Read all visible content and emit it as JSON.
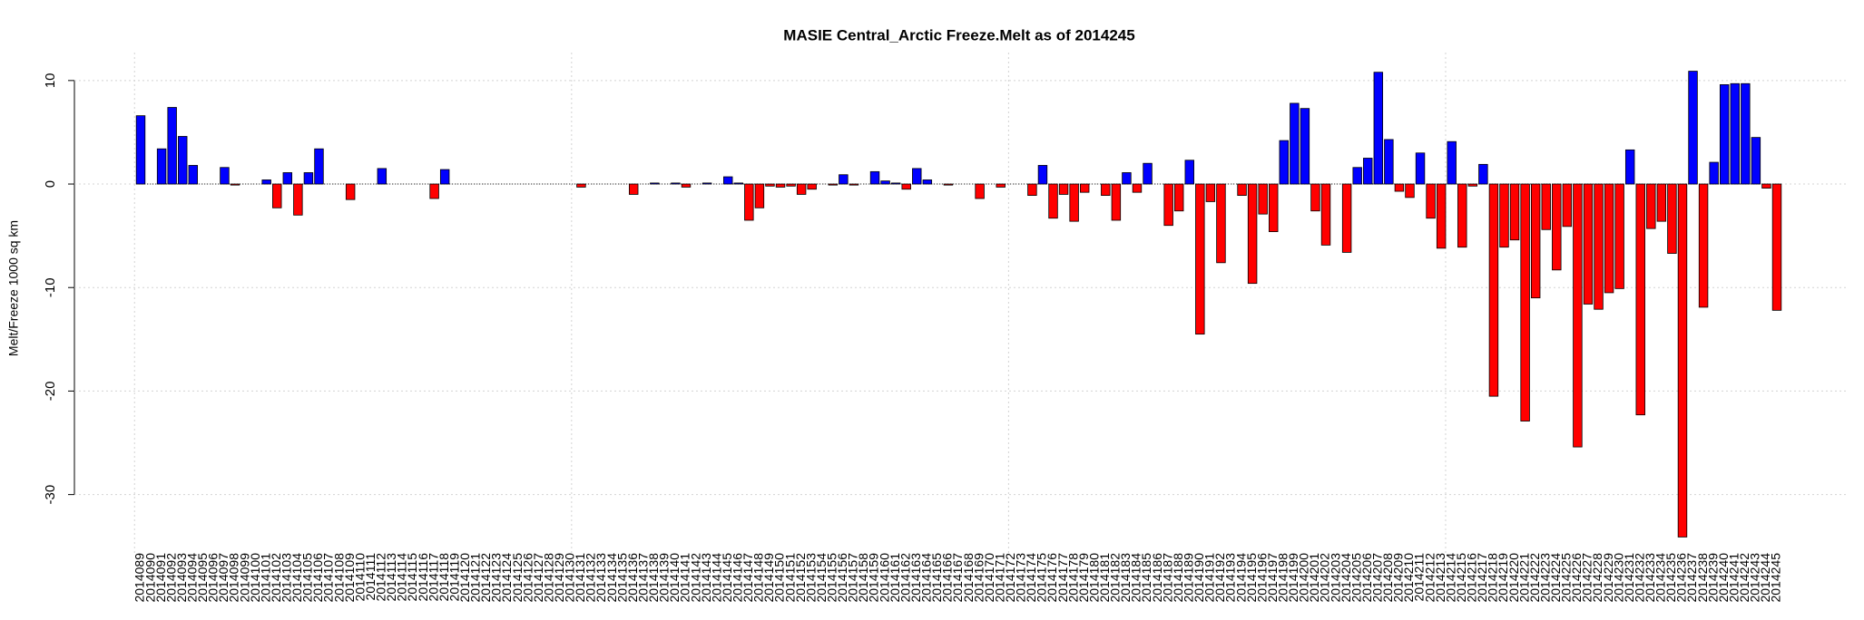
{
  "chart_data": {
    "type": "bar",
    "title": "MASIE Central_Arctic Freeze.Melt as of 2014245",
    "y_label": "Melt/Freeze 1000 sq km",
    "positive_color": "#0000ff",
    "negative_color": "#ff0000",
    "ylim": [
      -35.9,
      12.7
    ],
    "yticks": [
      -30,
      -20,
      -10,
      0,
      10
    ],
    "grid": true,
    "categories": [
      "2014089",
      "2014090",
      "2014091",
      "2014092",
      "2014093",
      "2014094",
      "2014095",
      "2014096",
      "2014097",
      "2014098",
      "2014099",
      "2014100",
      "2014101",
      "2014102",
      "2014103",
      "2014104",
      "2014105",
      "2014106",
      "2014107",
      "2014108",
      "2014109",
      "2014110",
      "2014111",
      "2014112",
      "2014113",
      "2014114",
      "2014115",
      "2014116",
      "2014117",
      "2014118",
      "2014119",
      "2014120",
      "2014121",
      "2014122",
      "2014123",
      "2014124",
      "2014125",
      "2014126",
      "2014127",
      "2014128",
      "2014129",
      "2014130",
      "2014131",
      "2014132",
      "2014133",
      "2014134",
      "2014135",
      "2014136",
      "2014137",
      "2014138",
      "2014139",
      "2014140",
      "2014141",
      "2014142",
      "2014143",
      "2014144",
      "2014145",
      "2014146",
      "2014147",
      "2014148",
      "2014149",
      "2014150",
      "2014151",
      "2014152",
      "2014153",
      "2014154",
      "2014155",
      "2014156",
      "2014157",
      "2014158",
      "2014159",
      "2014160",
      "2014161",
      "2014162",
      "2014163",
      "2014164",
      "2014165",
      "2014166",
      "2014167",
      "2014168",
      "2014169",
      "2014170",
      "2014171",
      "2014172",
      "2014173",
      "2014174",
      "2014175",
      "2014176",
      "2014177",
      "2014178",
      "2014179",
      "2014180",
      "2014181",
      "2014182",
      "2014183",
      "2014184",
      "2014185",
      "2014186",
      "2014187",
      "2014188",
      "2014189",
      "2014190",
      "2014191",
      "2014192",
      "2014193",
      "2014194",
      "2014195",
      "2014196",
      "2014197",
      "2014198",
      "2014199",
      "2014200",
      "2014201",
      "2014202",
      "2014203",
      "2014204",
      "2014205",
      "2014206",
      "2014207",
      "2014208",
      "2014209",
      "2014210",
      "2014211",
      "2014212",
      "2014213",
      "2014214",
      "2014215",
      "2014216",
      "2014217",
      "2014218",
      "2014219",
      "2014220",
      "2014221",
      "2014222",
      "2014223",
      "2014224",
      "2014225",
      "2014226",
      "2014227",
      "2014228",
      "2014229",
      "2014230",
      "2014231",
      "2014232",
      "2014233",
      "2014234",
      "2014235",
      "2014236",
      "2014237",
      "2014238",
      "2014239",
      "2014240",
      "2014241",
      "2014242",
      "2014243",
      "2014244",
      "2014245"
    ],
    "values": [
      6.6,
      0,
      3.4,
      7.4,
      4.6,
      1.8,
      0,
      0,
      1.6,
      -0.1,
      0,
      0,
      0.4,
      -2.3,
      1.1,
      -3.0,
      1.1,
      3.4,
      0,
      0,
      -1.5,
      0,
      0,
      1.5,
      0,
      0,
      0,
      0,
      -1.4,
      1.4,
      0,
      0,
      0,
      0,
      0,
      0,
      0,
      0,
      0,
      0,
      0,
      0,
      -0.3,
      0,
      0,
      0,
      0,
      -1.0,
      0,
      0.1,
      0,
      0.1,
      -0.3,
      0,
      0.1,
      0,
      0.7,
      0.1,
      -3.5,
      -2.3,
      -0.2,
      -0.3,
      -0.2,
      -1.0,
      -0.5,
      0,
      -0.1,
      0.9,
      -0.1,
      0,
      1.2,
      0.3,
      0.1,
      -0.5,
      1.5,
      0.4,
      0,
      -0.1,
      0,
      0,
      -1.4,
      0,
      -0.3,
      0,
      0,
      -1.1,
      1.8,
      -3.3,
      -1.0,
      -3.6,
      -0.8,
      0,
      -1.1,
      -3.5,
      1.1,
      -0.8,
      2.0,
      0,
      -4.0,
      -2.6,
      2.3,
      -14.5,
      -1.7,
      -7.6,
      0,
      -1.1,
      -9.6,
      -2.9,
      -4.6,
      4.2,
      7.8,
      7.3,
      -2.6,
      -5.9,
      0,
      -6.6,
      1.6,
      2.5,
      10.8,
      4.3,
      -0.7,
      -1.3,
      3.0,
      -3.3,
      -6.2,
      4.1,
      -6.1,
      -0.2,
      1.9,
      -20.5,
      -6.1,
      -5.4,
      -22.9,
      -11.0,
      -4.4,
      -8.3,
      -4.1,
      -25.4,
      -11.6,
      -12.1,
      -10.5,
      -10.1,
      3.3,
      -22.3,
      -4.3,
      -3.6,
      -6.7,
      -34.1,
      10.9,
      -11.9,
      2.1,
      9.6,
      9.7,
      9.7,
      4.5,
      -0.4,
      -12.2
    ]
  }
}
